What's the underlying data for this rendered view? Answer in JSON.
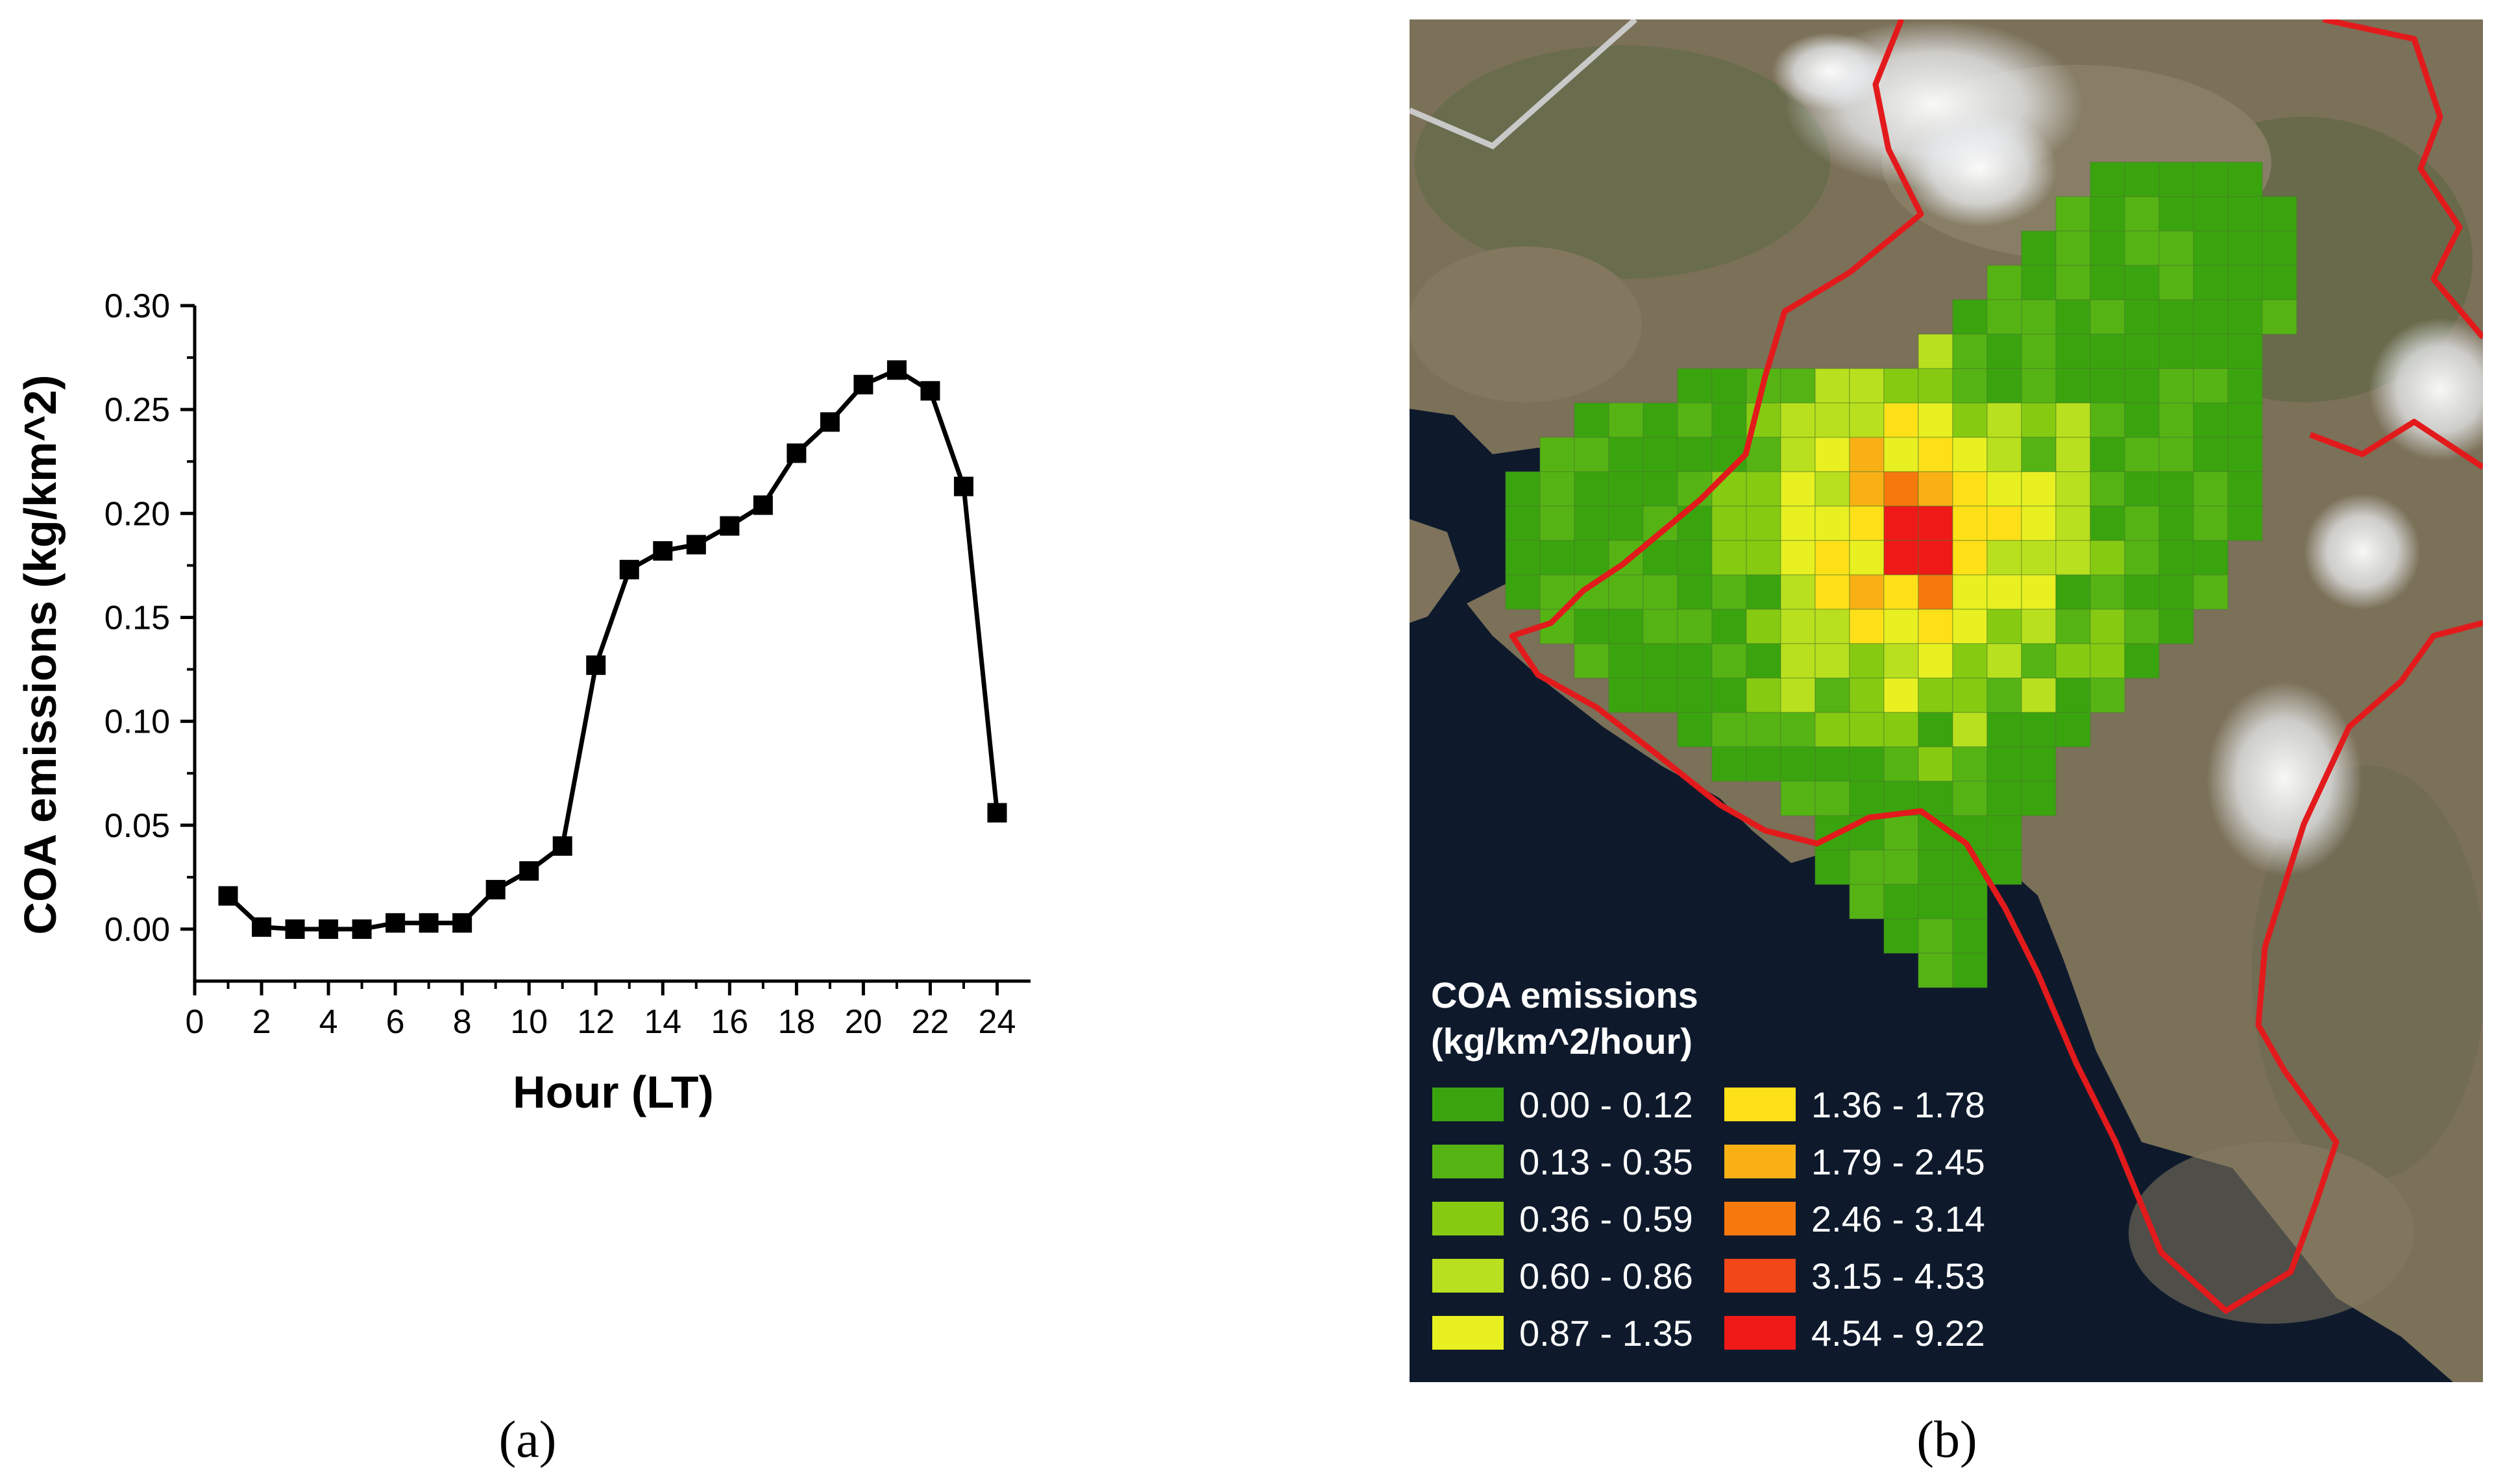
{
  "panels": {
    "a_label": "(a)",
    "b_label": "(b)"
  },
  "chart_data": [
    {
      "type": "line",
      "panel": "a",
      "title": "",
      "xlabel": "Hour (LT)",
      "ylabel": "COA emissions (kg/km^2)",
      "xlim": [
        0,
        25
      ],
      "ylim": [
        -0.025,
        0.3
      ],
      "xticks": [
        0,
        2,
        4,
        6,
        8,
        10,
        12,
        14,
        16,
        18,
        20,
        22,
        24
      ],
      "yticks": [
        0.0,
        0.05,
        0.1,
        0.15,
        0.2,
        0.25,
        0.3
      ],
      "ytick_labels": [
        "0.00",
        "0.05",
        "0.10",
        "0.15",
        "0.20",
        "0.25",
        "0.30"
      ],
      "marker": "square",
      "line_color": "#000000",
      "x": [
        1,
        2,
        3,
        4,
        5,
        6,
        7,
        8,
        9,
        10,
        11,
        12,
        13,
        14,
        15,
        16,
        17,
        18,
        19,
        20,
        21,
        22,
        23,
        24
      ],
      "values": [
        0.016,
        0.001,
        0.0,
        0.0,
        0.0,
        0.003,
        0.003,
        0.003,
        0.019,
        0.028,
        0.04,
        0.127,
        0.173,
        0.182,
        0.185,
        0.194,
        0.204,
        0.229,
        0.244,
        0.262,
        0.269,
        0.259,
        0.213,
        0.056
      ],
      "grid": false
    },
    {
      "type": "heatmap",
      "panel": "b",
      "legend": {
        "title_line1": "COA emissions",
        "title_line2": "(kg/km^2/hour)",
        "placement": "bottom-left",
        "classes": [
          {
            "label": "0.00 - 0.12",
            "color": "#3aa40f"
          },
          {
            "label": "0.13 - 0.35",
            "color": "#55b414"
          },
          {
            "label": "0.36 - 0.59",
            "color": "#86cb12"
          },
          {
            "label": "0.60 - 0.86",
            "color": "#b9e01e"
          },
          {
            "label": "0.87 - 1.35",
            "color": "#e8f021"
          },
          {
            "label": "1.36 - 1.78",
            "color": "#fde018"
          },
          {
            "label": "1.79 - 2.45",
            "color": "#f9b015"
          },
          {
            "label": "2.46 - 3.14",
            "color": "#f7780d"
          },
          {
            "label": "3.15 - 4.53",
            "color": "#f24717"
          },
          {
            "label": "4.54 - 9.22",
            "color": "#ef1a17"
          }
        ]
      },
      "colors": {
        "sea": "#0e1a2c",
        "land": "#7b7058",
        "boundary": "#e31a1c",
        "cloud": "#eef0f3"
      }
    }
  ]
}
